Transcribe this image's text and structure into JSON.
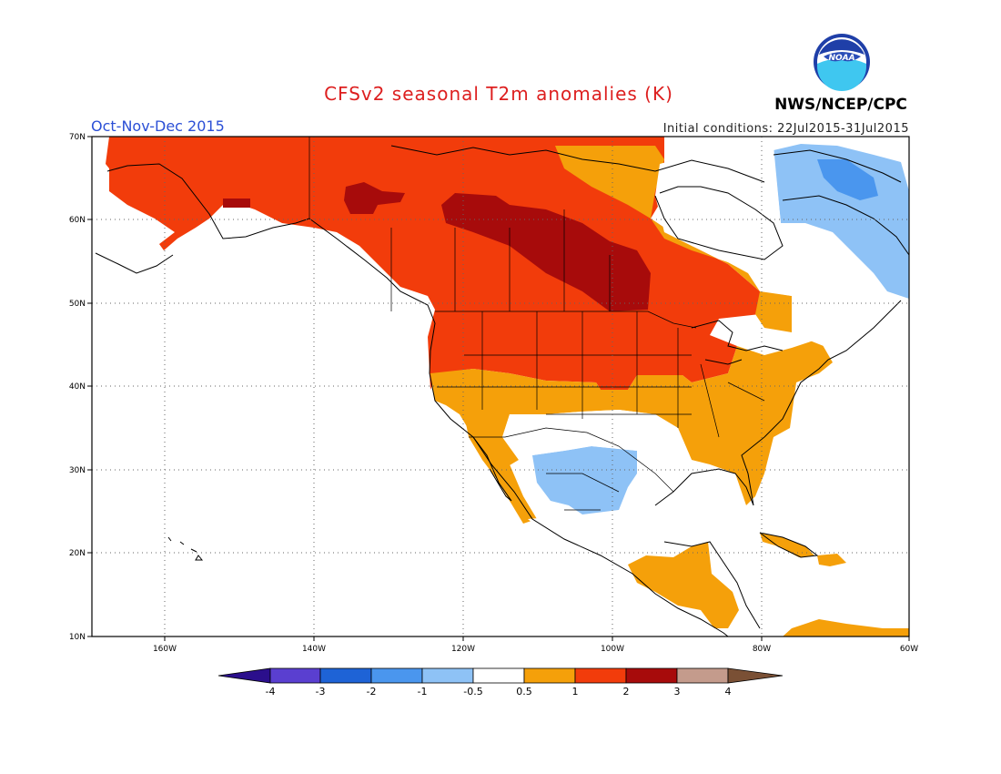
{
  "header": {
    "title": "CFSv2 seasonal T2m anomalies (K)",
    "season": "Oct-Nov-Dec 2015",
    "initial_conditions": "Initial conditions: 22Jul2015-31Jul2015",
    "agency": "NWS/NCEP/CPC",
    "logo_text": "NOAA"
  },
  "map": {
    "extent": {
      "lon": [
        -172,
        -60
      ],
      "lat": [
        10,
        70
      ]
    },
    "lat_ticks": [
      {
        "value": 70,
        "label": "70N"
      },
      {
        "value": 60,
        "label": "60N"
      },
      {
        "value": 50,
        "label": "50N"
      },
      {
        "value": 40,
        "label": "40N"
      },
      {
        "value": 30,
        "label": "30N"
      },
      {
        "value": 20,
        "label": "20N"
      },
      {
        "value": 10,
        "label": "10N"
      }
    ],
    "lon_ticks": [
      {
        "value": -160,
        "label": "160W"
      },
      {
        "value": -140,
        "label": "140W"
      },
      {
        "value": -120,
        "label": "120W"
      },
      {
        "value": -100,
        "label": "100W"
      },
      {
        "value": -80,
        "label": "80W"
      },
      {
        "value": -60,
        "label": "60W"
      }
    ],
    "grid": "dotted",
    "colors": {
      "lt_neg4": "#2b0f8c",
      "neg4_neg3": "#5a3fd0",
      "neg3_neg2": "#1e63d6",
      "neg2_neg1": "#4a96ee",
      "neg1_neg05": "#8ec2f6",
      "neutral": "#ffffff",
      "p05_p1": "#f5a00a",
      "p1_p2": "#f23c0b",
      "p2_p3": "#a70b0b",
      "p3_p4": "#c49b8c",
      "gt_p4": "#7a5035"
    }
  },
  "legend": {
    "labels": [
      "-4",
      "-3",
      "-2",
      "-1",
      "-0.5",
      "0.5",
      "1",
      "2",
      "3",
      "4"
    ],
    "colors": [
      "#2b0f8c",
      "#5a3fd0",
      "#1e63d6",
      "#4a96ee",
      "#8ec2f6",
      "#ffffff",
      "#f5a00a",
      "#f23c0b",
      "#a70b0b",
      "#c49b8c",
      "#7a5035"
    ]
  }
}
